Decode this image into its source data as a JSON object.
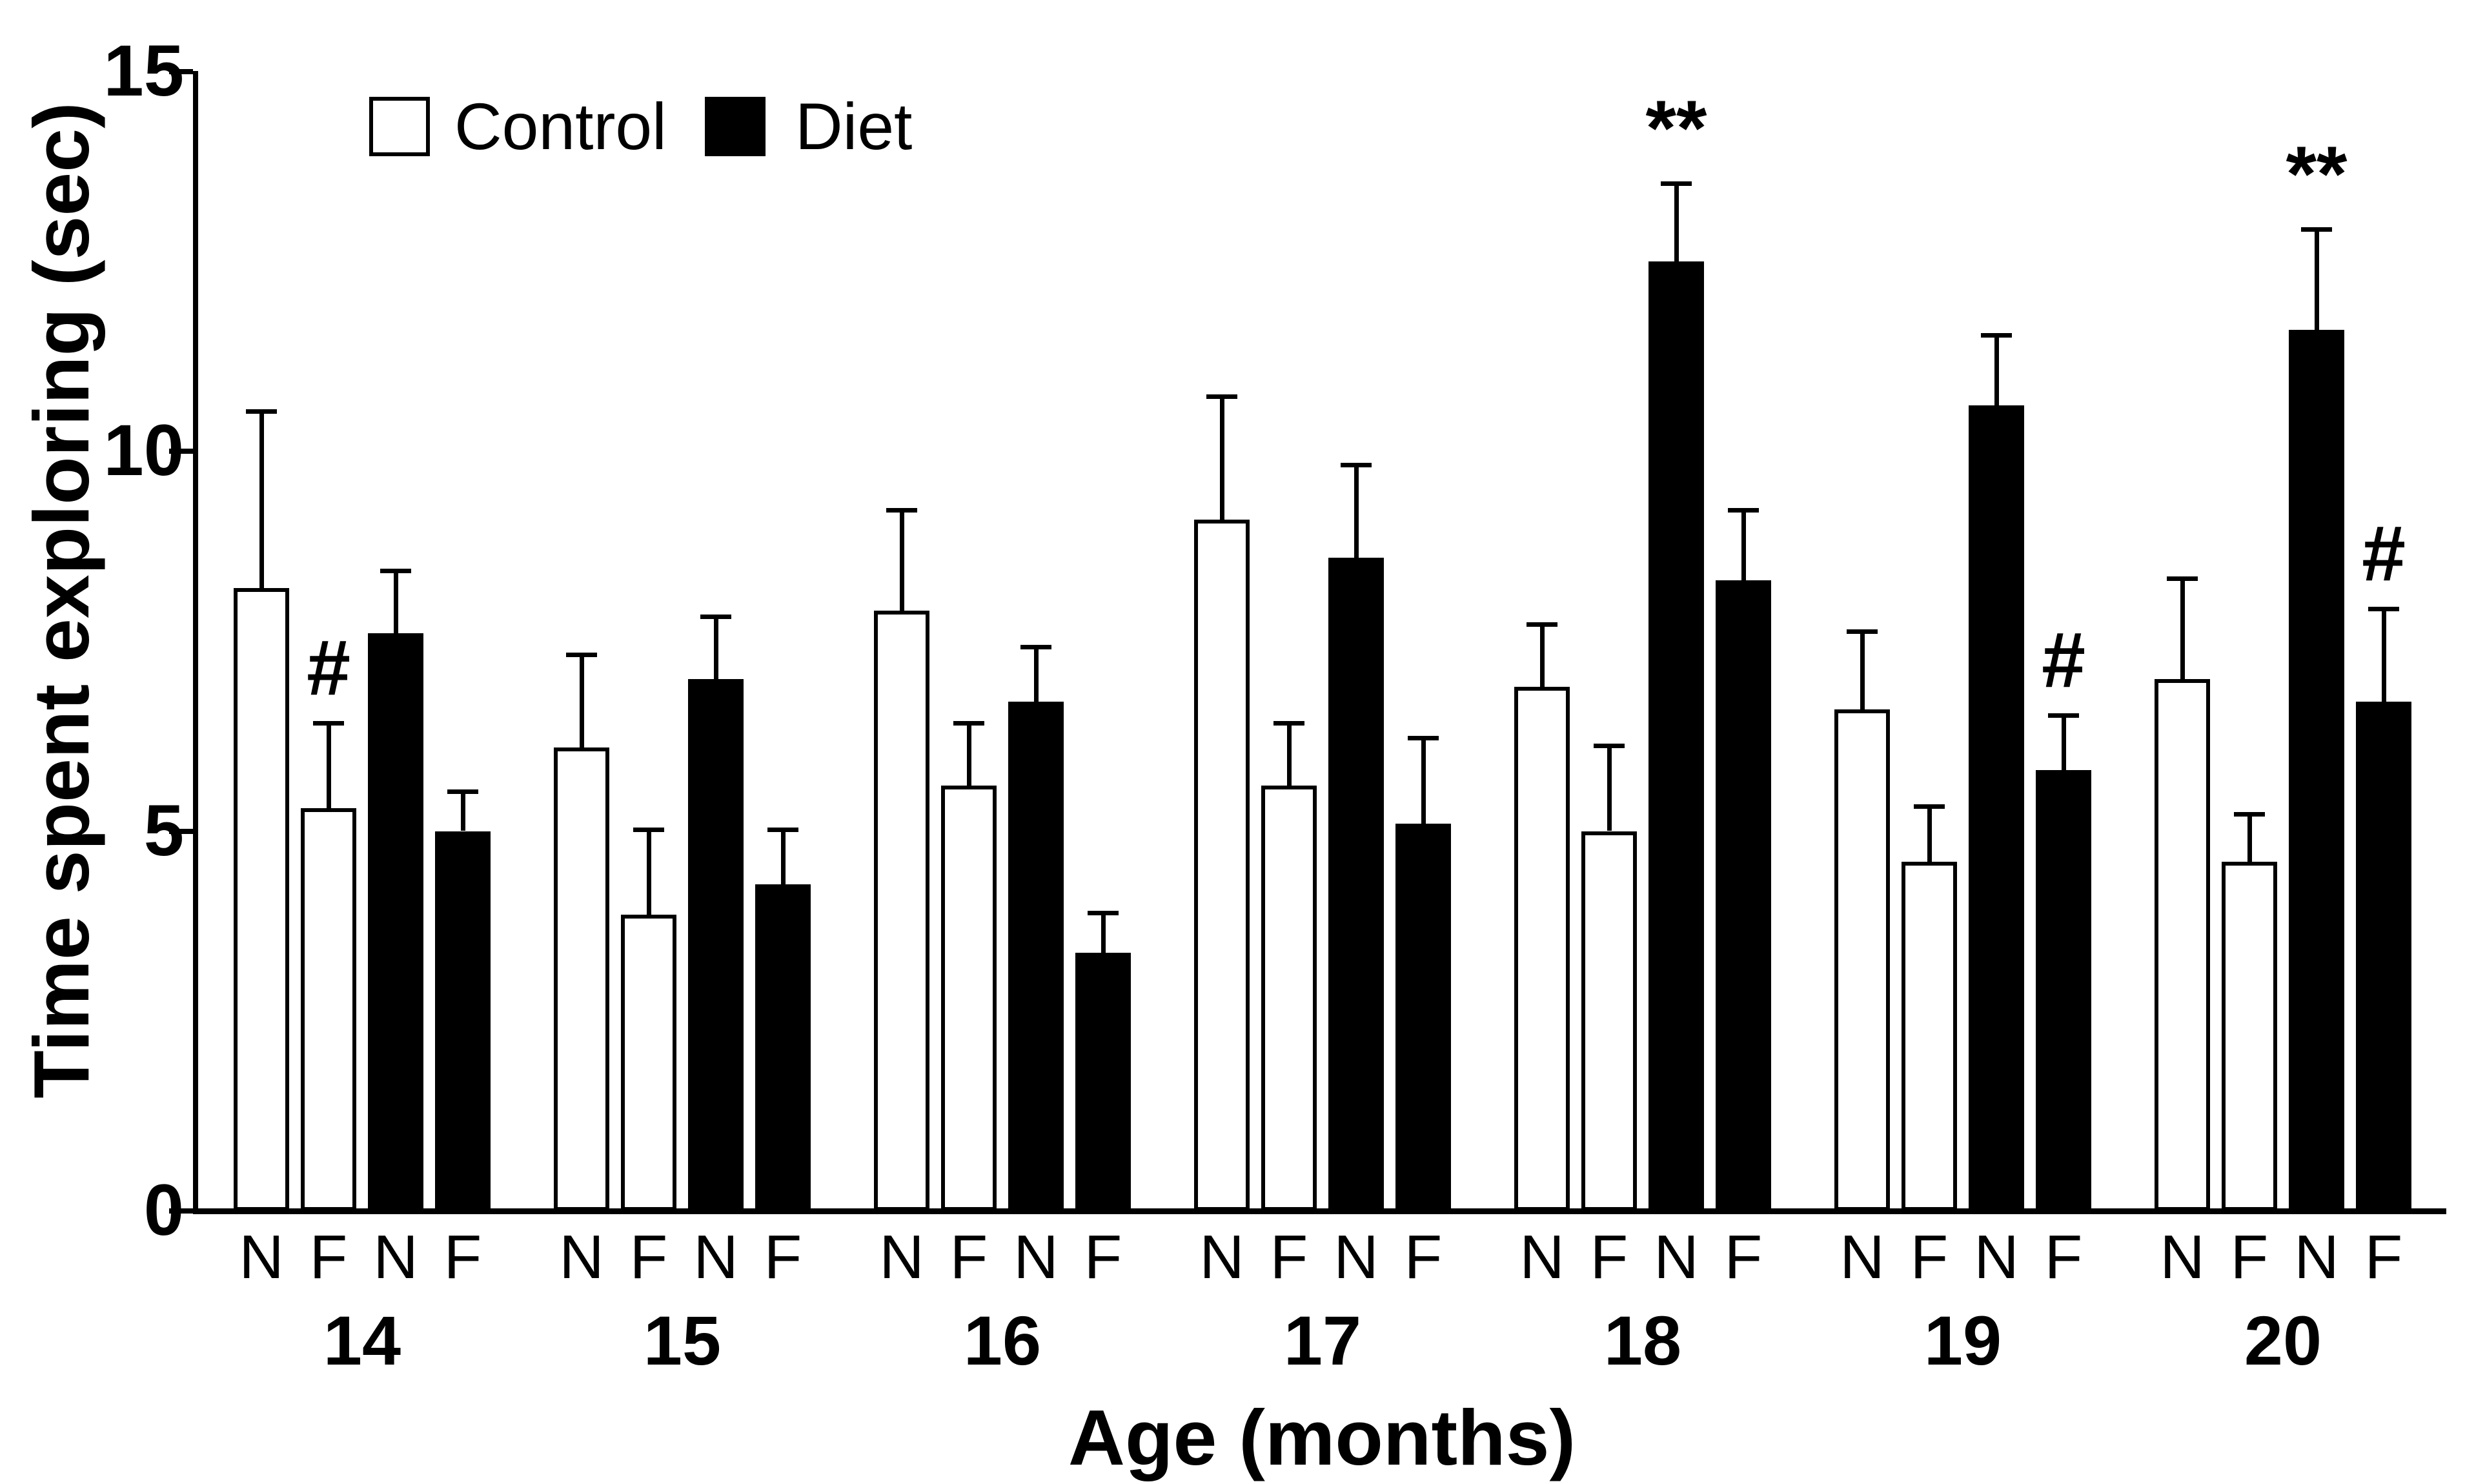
{
  "y_axis": {
    "label": "Time spent exploring (sec)",
    "ticks": [
      0,
      5,
      10,
      15
    ],
    "max": 15
  },
  "x_axis": {
    "label": "Age (months)"
  },
  "legend": {
    "items": [
      {
        "label": "Control",
        "color": "#ffffff"
      },
      {
        "label": "Diet",
        "color": "#000000"
      }
    ]
  },
  "chart_data": {
    "type": "bar",
    "title": "",
    "xlabel": "Age (months)",
    "ylabel": "Time spent exploring (sec)",
    "ylim": [
      0,
      15
    ],
    "grid": false,
    "legend_position": "top-left-inside",
    "categories": [
      14,
      15,
      16,
      17,
      18,
      19,
      20
    ],
    "object_labels": [
      "N",
      "F",
      "N",
      "F"
    ],
    "series": [
      {
        "name": "Control",
        "object": "N",
        "fill": "#ffffff",
        "values": [
          8.2,
          6.1,
          7.9,
          9.1,
          6.9,
          6.6,
          7.0
        ],
        "errors": [
          2.3,
          1.2,
          1.3,
          1.6,
          0.8,
          1.0,
          1.3
        ]
      },
      {
        "name": "Control",
        "object": "F",
        "fill": "#ffffff",
        "values": [
          5.3,
          3.9,
          5.6,
          5.6,
          5.0,
          4.6,
          4.6
        ],
        "errors": [
          1.1,
          1.1,
          0.8,
          0.8,
          1.1,
          0.7,
          0.6
        ]
      },
      {
        "name": "Diet",
        "object": "N",
        "fill": "#000000",
        "values": [
          7.6,
          7.0,
          6.7,
          8.6,
          12.5,
          10.6,
          11.6
        ],
        "errors": [
          0.8,
          0.8,
          0.7,
          1.2,
          1.0,
          0.9,
          1.3
        ]
      },
      {
        "name": "Diet",
        "object": "F",
        "fill": "#000000",
        "values": [
          5.0,
          4.3,
          3.4,
          5.1,
          8.3,
          5.8,
          6.7
        ],
        "errors": [
          0.5,
          0.7,
          0.5,
          1.1,
          0.9,
          0.7,
          1.2
        ]
      }
    ],
    "annotations": [
      {
        "age": 14,
        "series": "Control",
        "object": "F",
        "symbol": "#"
      },
      {
        "age": 18,
        "series": "Diet",
        "object": "N",
        "symbol": "**"
      },
      {
        "age": 19,
        "series": "Diet",
        "object": "F",
        "symbol": "#"
      },
      {
        "age": 20,
        "series": "Diet",
        "object": "N",
        "symbol": "**"
      },
      {
        "age": 20,
        "series": "Diet",
        "object": "F",
        "symbol": "#"
      }
    ]
  }
}
